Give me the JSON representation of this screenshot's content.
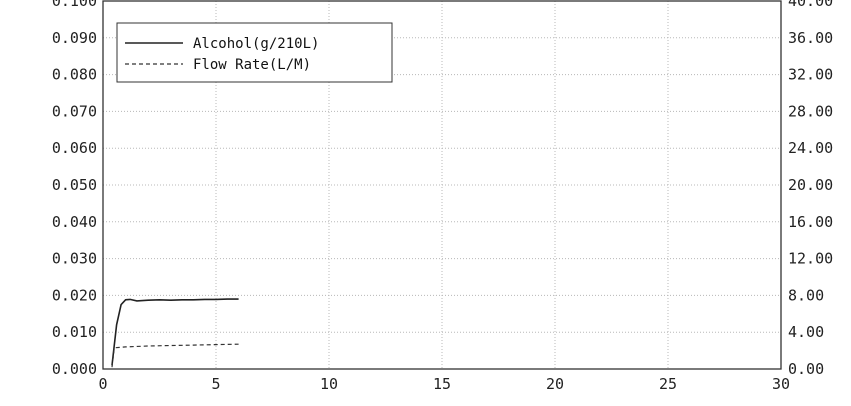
{
  "chart_data": {
    "type": "line",
    "title": "",
    "xlabel": "",
    "ylabel": "",
    "xlim": [
      0,
      30
    ],
    "ylim": [
      0,
      0.1
    ],
    "y2lim": [
      0,
      40
    ],
    "grid": true,
    "legend_position": "top-left",
    "x_ticks": [
      "0",
      "5",
      "10",
      "15",
      "20",
      "25",
      "30"
    ],
    "y_ticks": [
      "0.000",
      "0.010",
      "0.020",
      "0.030",
      "0.040",
      "0.050",
      "0.060",
      "0.070",
      "0.080",
      "0.090",
      "0.100"
    ],
    "y2_ticks": [
      "0.00",
      "4.00",
      "8.00",
      "12.00",
      "16.00",
      "20.00",
      "24.00",
      "28.00",
      "32.00",
      "36.00",
      "40.00"
    ],
    "series": [
      {
        "name": "Alcohol(g/210L)",
        "axis": "left",
        "style": "solid",
        "color": "#222222",
        "x": [
          0.4,
          0.6,
          0.8,
          1.0,
          1.2,
          1.5,
          2.0,
          2.5,
          3.0,
          3.5,
          4.0,
          4.5,
          5.0,
          5.5,
          6.0
        ],
        "y": [
          0.001,
          0.012,
          0.0175,
          0.0188,
          0.0189,
          0.0185,
          0.0187,
          0.0188,
          0.0187,
          0.0188,
          0.0188,
          0.0189,
          0.0189,
          0.019,
          0.019
        ]
      },
      {
        "name": "Flow Rate(L/M)",
        "axis": "right",
        "style": "dashed",
        "color": "#333333",
        "x": [
          0.4,
          0.5,
          1.0,
          2.0,
          3.0,
          4.0,
          5.0,
          6.0
        ],
        "y": [
          0.2,
          2.3,
          2.4,
          2.5,
          2.55,
          2.6,
          2.65,
          2.7
        ]
      }
    ]
  }
}
